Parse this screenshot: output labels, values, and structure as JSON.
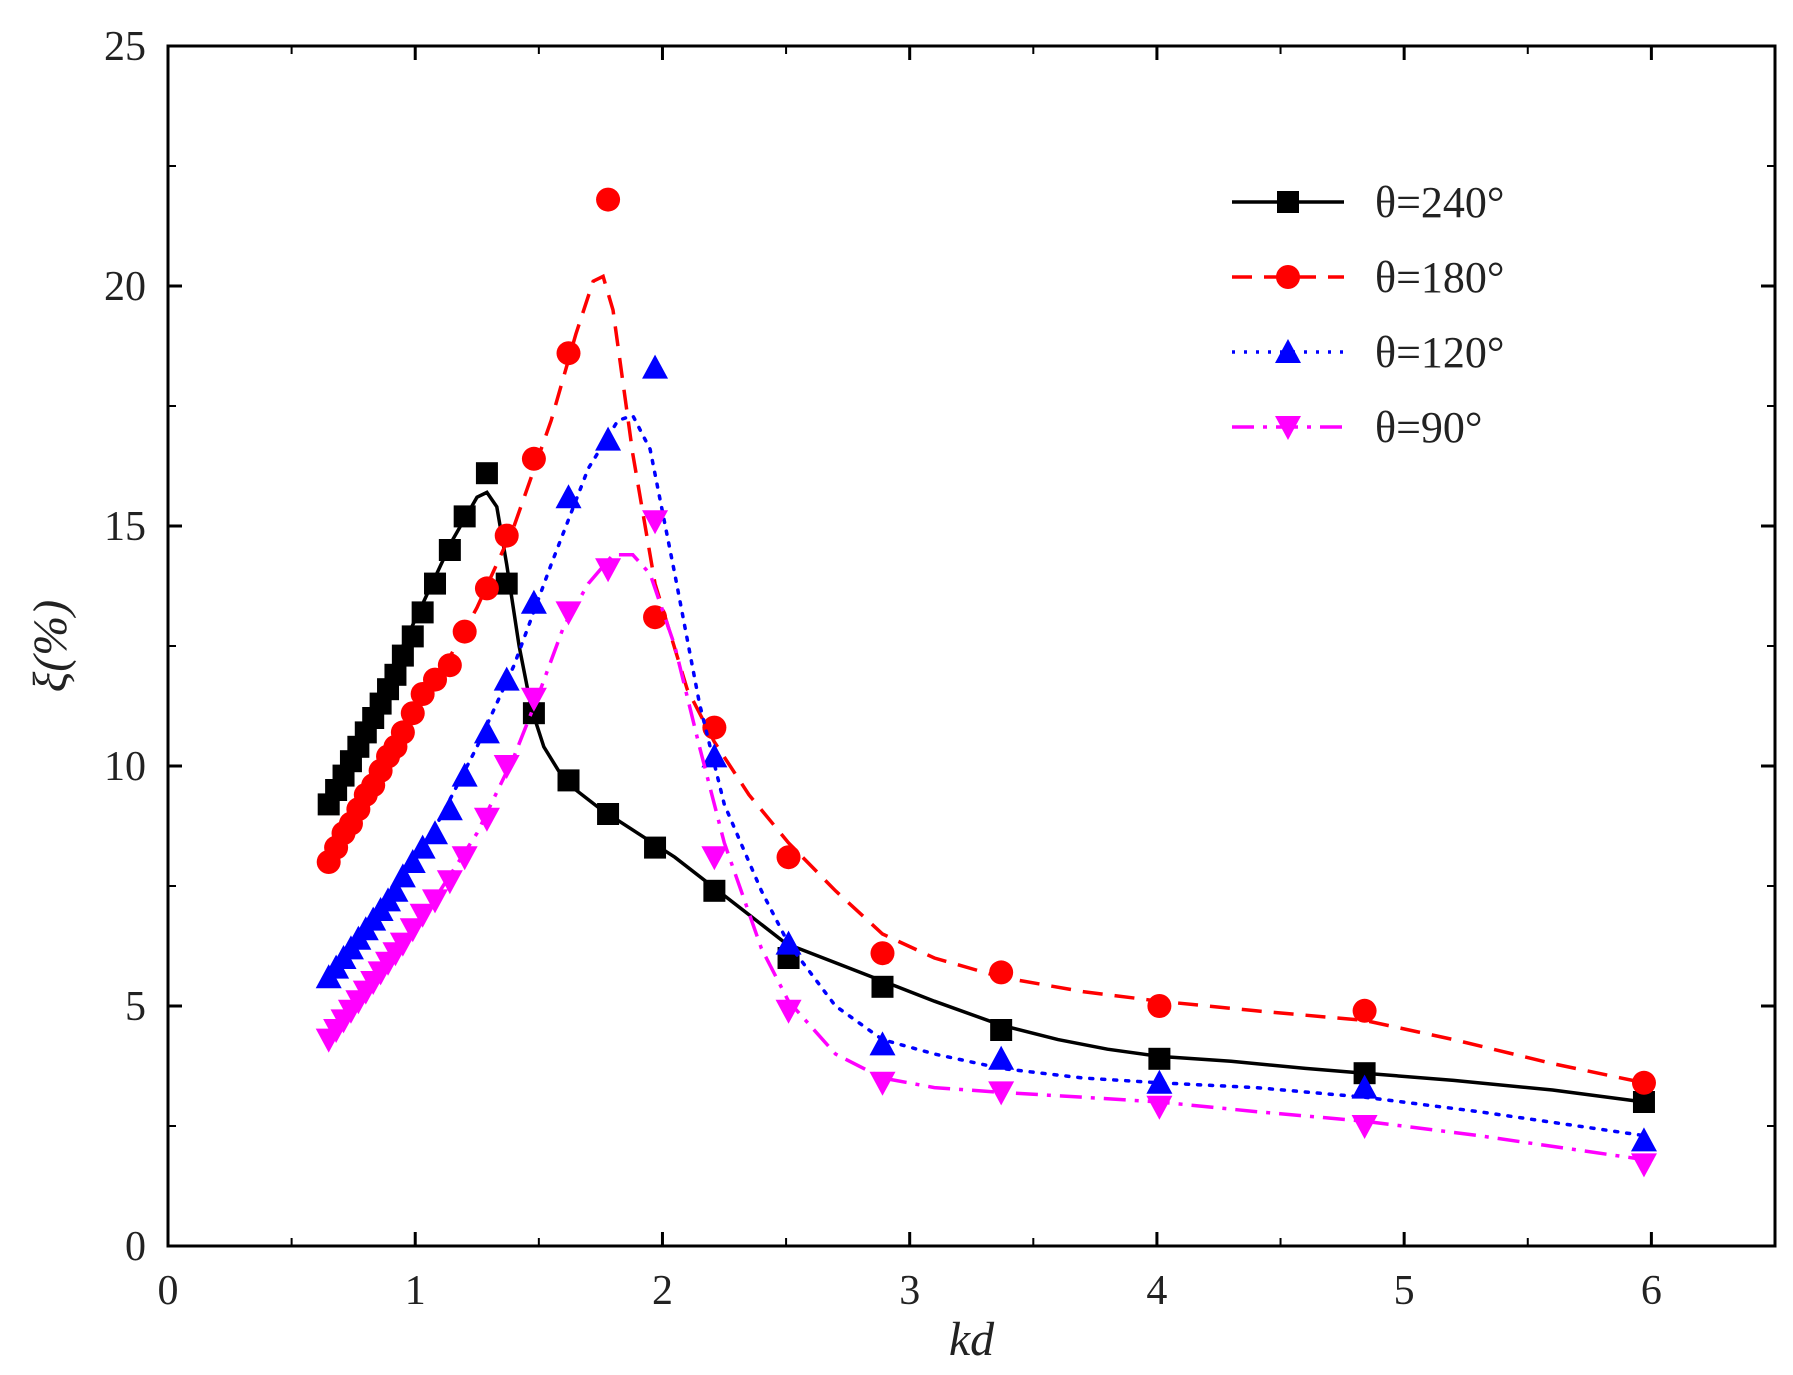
{
  "chart_data": {
    "type": "line",
    "title": "",
    "xlabel": "kd",
    "ylabel": "ξ(%)",
    "xlim": [
      0,
      6.5
    ],
    "ylim": [
      0,
      25
    ],
    "xticks": [
      0,
      1,
      2,
      3,
      4,
      5,
      6
    ],
    "yticks": [
      0,
      5,
      10,
      15,
      20,
      25
    ],
    "legend_position": "top-right",
    "series": [
      {
        "name": "θ=240°",
        "color": "#000000",
        "line_style": "solid",
        "marker": "square",
        "x": [
          0.65,
          0.68,
          0.71,
          0.74,
          0.77,
          0.8,
          0.83,
          0.86,
          0.89,
          0.92,
          0.95,
          0.99,
          1.03,
          1.08,
          1.14,
          1.2,
          1.29,
          1.37,
          1.48,
          1.62,
          1.78,
          1.97,
          2.21,
          2.51,
          2.89,
          3.37,
          4.01,
          4.84,
          5.97
        ],
        "y": [
          9.2,
          9.5,
          9.8,
          10.1,
          10.4,
          10.7,
          11.0,
          11.3,
          11.6,
          11.9,
          12.3,
          12.7,
          13.2,
          13.8,
          14.5,
          15.2,
          16.1,
          13.8,
          11.1,
          9.7,
          9.0,
          8.3,
          7.4,
          6.0,
          5.4,
          4.5,
          3.9,
          3.6,
          3.0
        ],
        "curve_x": [
          0.65,
          0.75,
          0.85,
          0.95,
          1.05,
          1.15,
          1.25,
          1.29,
          1.33,
          1.37,
          1.42,
          1.47,
          1.52,
          1.58,
          1.65,
          1.75,
          1.9,
          2.05,
          2.2,
          2.35,
          2.5,
          2.7,
          2.9,
          3.1,
          3.37,
          3.6,
          3.8,
          4.01,
          4.3,
          4.6,
          4.84,
          5.2,
          5.6,
          5.97
        ],
        "curve_y": [
          9.3,
          10.3,
          11.4,
          12.5,
          13.6,
          14.7,
          15.6,
          15.7,
          15.4,
          14.2,
          12.5,
          11.2,
          10.4,
          9.9,
          9.5,
          9.1,
          8.6,
          8.1,
          7.5,
          6.9,
          6.3,
          5.9,
          5.5,
          5.1,
          4.6,
          4.3,
          4.1,
          3.95,
          3.85,
          3.7,
          3.6,
          3.45,
          3.25,
          3.0
        ]
      },
      {
        "name": "θ=180°",
        "color": "#ff0000",
        "line_style": "dashed",
        "marker": "circle",
        "x": [
          0.65,
          0.68,
          0.71,
          0.74,
          0.77,
          0.8,
          0.83,
          0.86,
          0.89,
          0.92,
          0.95,
          0.99,
          1.03,
          1.08,
          1.14,
          1.2,
          1.29,
          1.37,
          1.48,
          1.62,
          1.78,
          1.97,
          2.21,
          2.51,
          2.89,
          3.37,
          4.01,
          4.84,
          5.97
        ],
        "y": [
          8.0,
          8.3,
          8.6,
          8.8,
          9.1,
          9.4,
          9.6,
          9.9,
          10.2,
          10.4,
          10.7,
          11.1,
          11.5,
          11.8,
          12.1,
          12.8,
          13.7,
          14.8,
          16.4,
          18.6,
          21.8,
          13.1,
          10.8,
          8.1,
          6.1,
          5.7,
          5.0,
          4.9,
          3.4
        ],
        "curve_x": [
          0.65,
          0.8,
          0.95,
          1.1,
          1.25,
          1.4,
          1.55,
          1.65,
          1.72,
          1.76,
          1.8,
          1.88,
          1.97,
          2.1,
          2.21,
          2.35,
          2.51,
          2.7,
          2.89,
          3.1,
          3.37,
          3.7,
          4.01,
          4.4,
          4.84,
          5.2,
          5.6,
          5.97
        ],
        "curve_y": [
          8.0,
          9.3,
          10.6,
          11.9,
          13.3,
          15.0,
          17.2,
          19.0,
          20.1,
          20.2,
          19.5,
          16.5,
          13.8,
          11.6,
          10.5,
          9.4,
          8.4,
          7.4,
          6.5,
          6.0,
          5.6,
          5.3,
          5.1,
          4.9,
          4.7,
          4.3,
          3.8,
          3.4
        ]
      },
      {
        "name": "θ=120°",
        "color": "#0000ff",
        "line_style": "dotted",
        "marker": "triangle-up",
        "x": [
          0.65,
          0.68,
          0.71,
          0.74,
          0.77,
          0.8,
          0.83,
          0.86,
          0.89,
          0.92,
          0.95,
          0.99,
          1.03,
          1.08,
          1.14,
          1.2,
          1.29,
          1.37,
          1.48,
          1.62,
          1.78,
          1.97,
          2.21,
          2.51,
          2.89,
          3.37,
          4.01,
          4.84,
          5.97
        ],
        "y": [
          5.6,
          5.8,
          6.0,
          6.2,
          6.4,
          6.6,
          6.8,
          7.0,
          7.2,
          7.4,
          7.7,
          8.0,
          8.3,
          8.6,
          9.1,
          9.8,
          10.7,
          11.8,
          13.4,
          15.6,
          16.8,
          18.3,
          10.2,
          6.3,
          4.2,
          3.9,
          3.4,
          3.3,
          2.2
        ],
        "curve_x": [
          0.65,
          0.8,
          0.95,
          1.1,
          1.25,
          1.4,
          1.55,
          1.7,
          1.82,
          1.88,
          1.95,
          2.05,
          2.15,
          2.25,
          2.4,
          2.51,
          2.7,
          2.89,
          3.1,
          3.37,
          3.7,
          4.01,
          4.4,
          4.84,
          5.3,
          5.97
        ],
        "curve_y": [
          5.6,
          6.6,
          7.7,
          8.9,
          10.4,
          12.1,
          14.2,
          16.2,
          17.2,
          17.3,
          16.6,
          14.0,
          11.3,
          9.2,
          7.4,
          6.3,
          5.0,
          4.3,
          4.0,
          3.7,
          3.5,
          3.4,
          3.3,
          3.1,
          2.8,
          2.3
        ]
      },
      {
        "name": "θ=90°",
        "color": "#ff00ff",
        "line_style": "dashdot",
        "marker": "triangle-down",
        "x": [
          0.65,
          0.68,
          0.71,
          0.74,
          0.77,
          0.8,
          0.83,
          0.86,
          0.89,
          0.92,
          0.95,
          0.99,
          1.03,
          1.08,
          1.14,
          1.2,
          1.29,
          1.37,
          1.48,
          1.62,
          1.78,
          1.97,
          2.21,
          2.51,
          2.89,
          3.37,
          4.01,
          4.84,
          5.97
        ],
        "y": [
          4.3,
          4.5,
          4.7,
          4.9,
          5.1,
          5.3,
          5.5,
          5.7,
          5.9,
          6.1,
          6.3,
          6.6,
          6.9,
          7.2,
          7.6,
          8.1,
          8.9,
          10.0,
          11.4,
          13.2,
          14.1,
          15.1,
          8.1,
          4.9,
          3.4,
          3.2,
          2.9,
          2.5,
          1.7
        ],
        "curve_x": [
          0.65,
          0.8,
          0.95,
          1.1,
          1.25,
          1.4,
          1.5,
          1.6,
          1.7,
          1.8,
          1.88,
          1.95,
          2.05,
          2.15,
          2.25,
          2.4,
          2.51,
          2.7,
          2.89,
          3.1,
          3.37,
          3.7,
          4.01,
          4.4,
          4.84,
          5.3,
          5.97
        ],
        "curve_y": [
          4.3,
          5.3,
          6.3,
          7.4,
          8.6,
          10.2,
          11.5,
          12.9,
          13.8,
          14.4,
          14.4,
          14.0,
          12.5,
          10.4,
          8.4,
          6.2,
          5.1,
          4.0,
          3.5,
          3.3,
          3.2,
          3.1,
          3.0,
          2.8,
          2.6,
          2.3,
          1.8
        ]
      }
    ]
  }
}
